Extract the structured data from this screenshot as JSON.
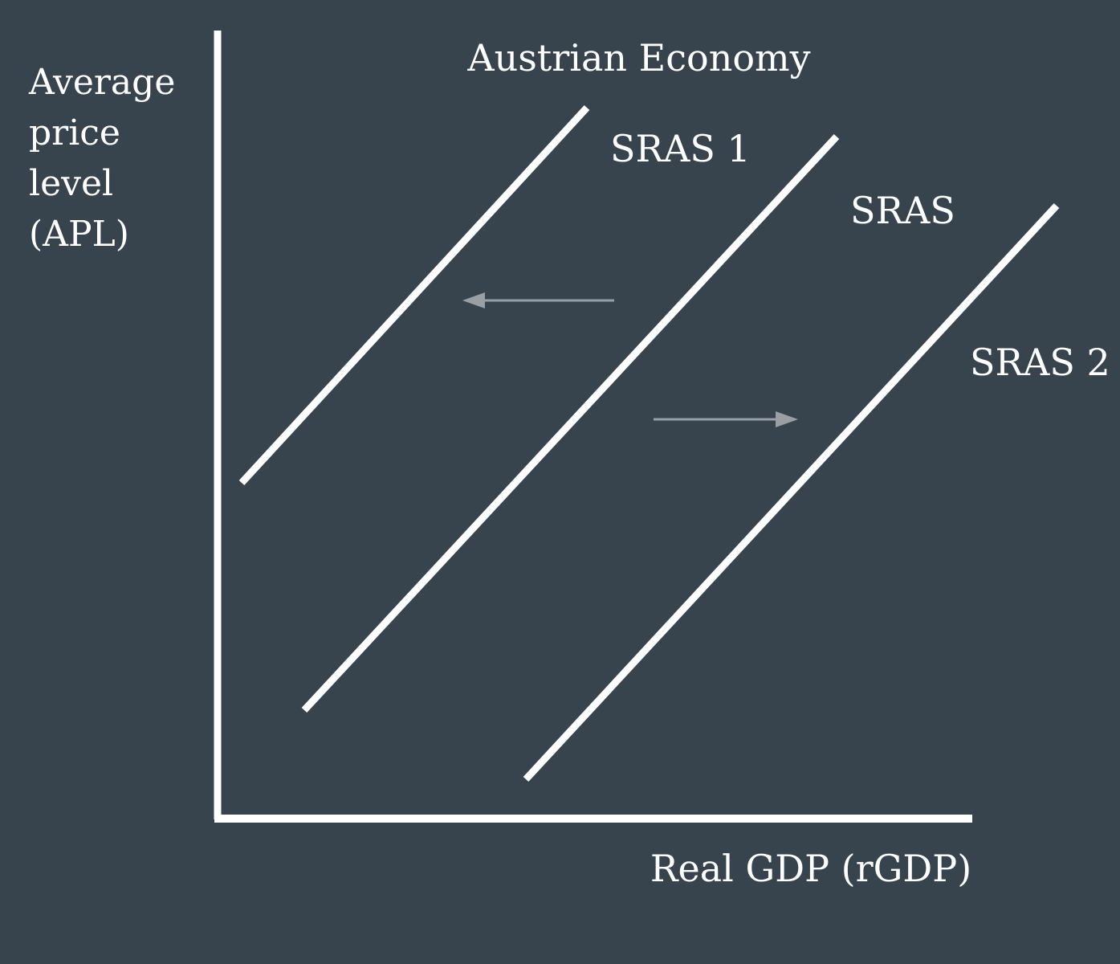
{
  "chart_data": {
    "type": "line",
    "title": "Austrian Economy",
    "ylabel_lines": [
      "Average",
      "price",
      "level",
      "(APL)"
    ],
    "xlabel": "Real GDP (rGDP)",
    "series": [
      {
        "name": "SRAS 1",
        "role": "shifted-left"
      },
      {
        "name": "SRAS",
        "role": "original"
      },
      {
        "name": "SRAS 2",
        "role": "shifted-right"
      }
    ],
    "annotations": [
      {
        "type": "arrow",
        "direction": "left",
        "meaning": "SRAS shifts to SRAS 1"
      },
      {
        "type": "arrow",
        "direction": "right",
        "meaning": "SRAS shifts to SRAS 2"
      }
    ],
    "grid": false,
    "legend": "none",
    "colors": {
      "background": "#38444d",
      "lines": "#ffffff",
      "arrows": "#9a9fa3"
    }
  }
}
